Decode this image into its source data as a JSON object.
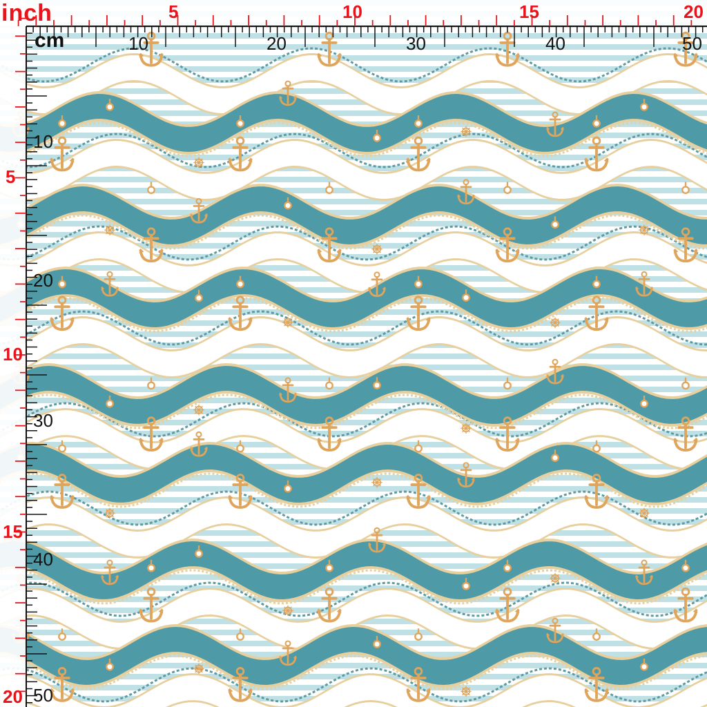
{
  "rulers": {
    "inch_unit": "inch",
    "cm_unit": "cm",
    "inch_labels": [
      "5",
      "10",
      "15",
      "20"
    ],
    "cm_labels": [
      "10",
      "20",
      "30",
      "40",
      "50"
    ]
  },
  "colors": {
    "inch_ruler": "#e8141c",
    "cm_ruler": "#111111",
    "teal_band": "#4e9aa6",
    "light_stripe": "#bfe0e4",
    "white_band": "#ffffff",
    "rope": "#e8cf9e",
    "anchor": "#e0a55c"
  },
  "pattern": {
    "motifs": [
      "wave-band",
      "rope-icon",
      "anchor-icon",
      "ship-wheel-icon",
      "ring-icon",
      "stripe"
    ]
  }
}
